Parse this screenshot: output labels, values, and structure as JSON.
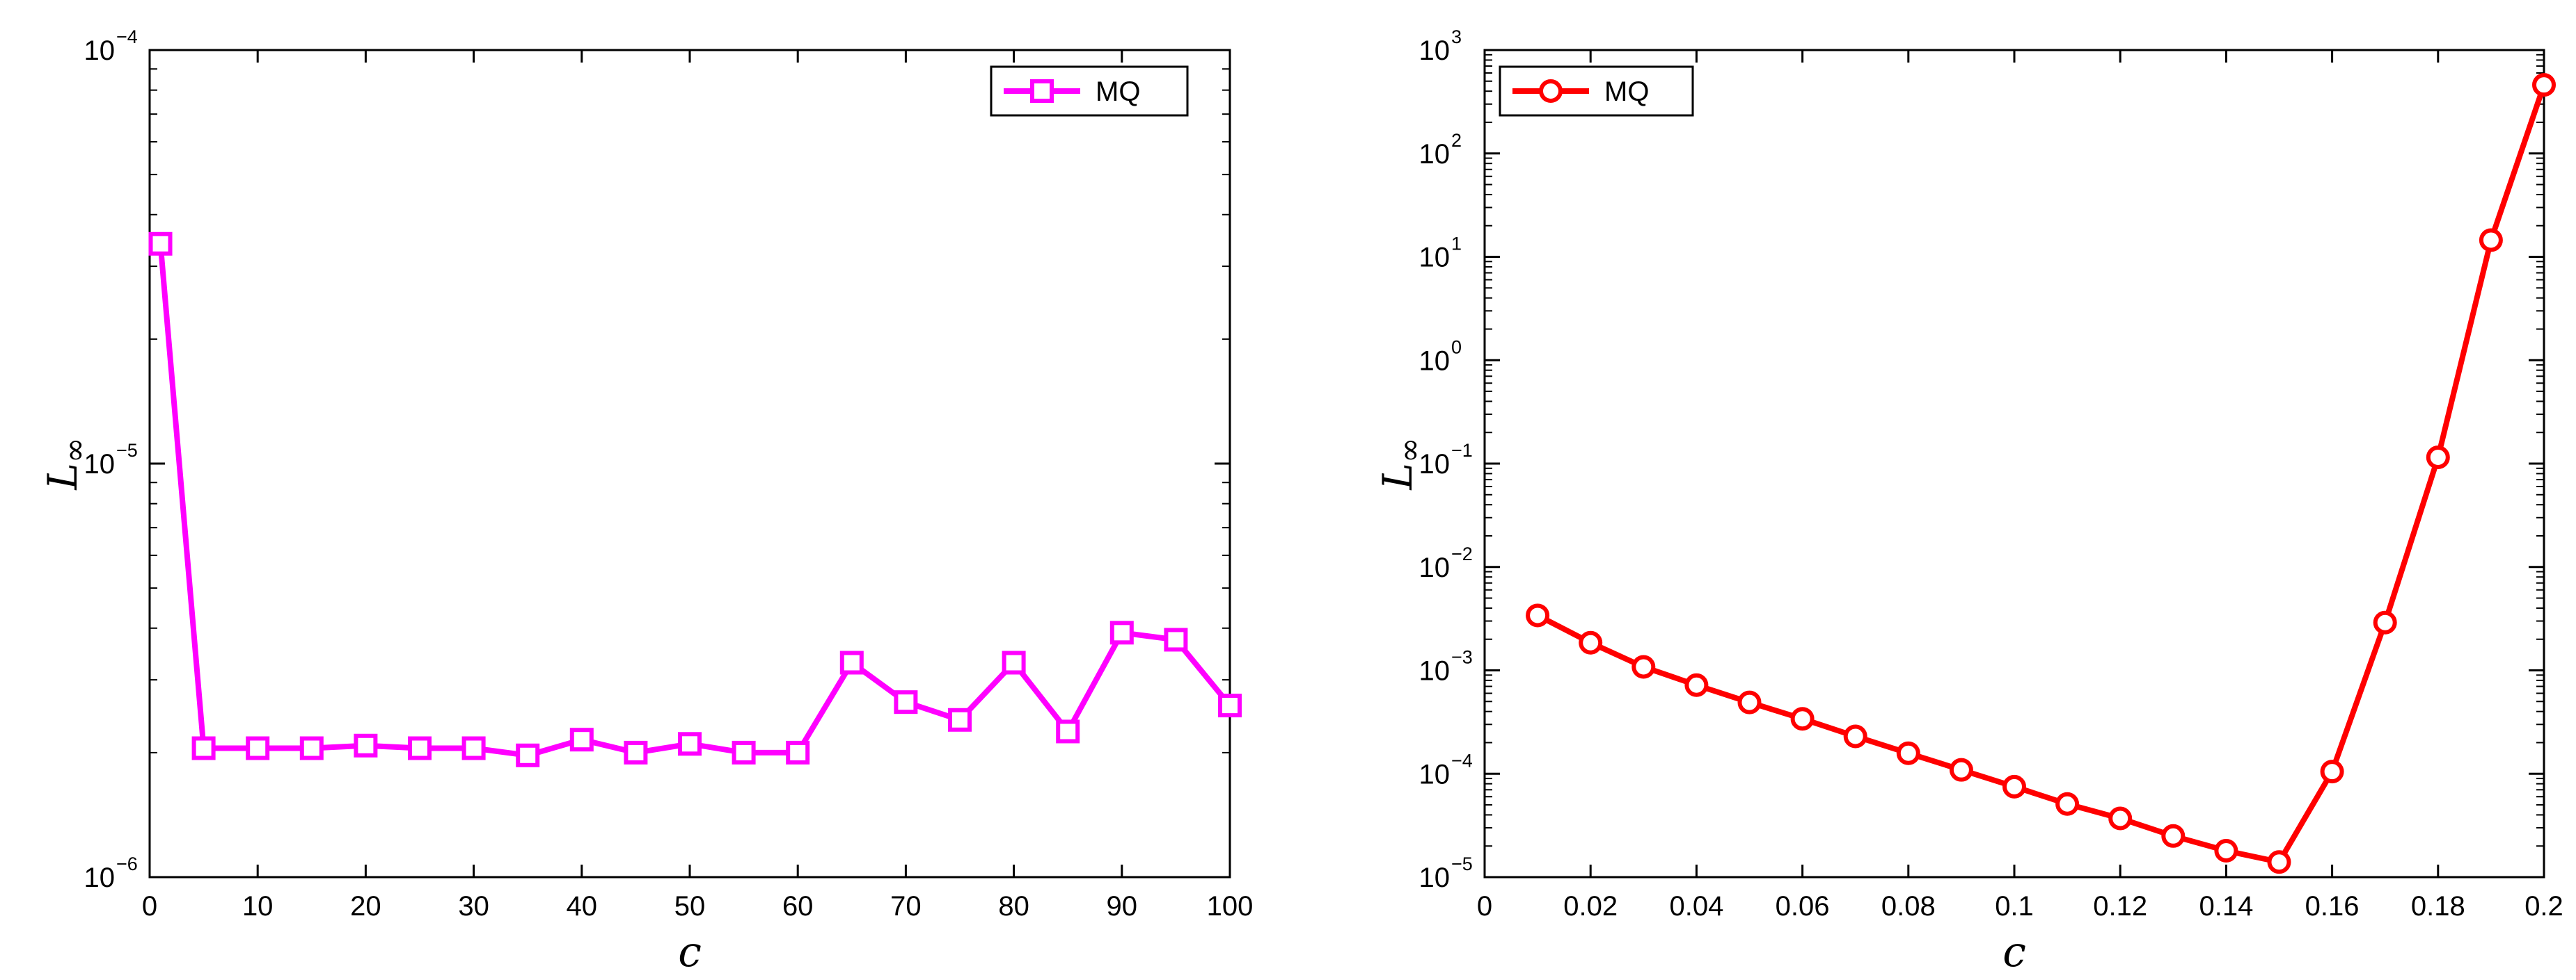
{
  "chart_data": [
    {
      "type": "line",
      "xlabel": "c",
      "ylabel": "L",
      "ylabel_subscript": "∞",
      "xlim": [
        0,
        100
      ],
      "ylim": [
        1e-06,
        0.0001
      ],
      "yscale": "log",
      "grid": false,
      "legend_position": "top-right",
      "x_ticks": [
        "0",
        "10",
        "20",
        "30",
        "40",
        "50",
        "60",
        "70",
        "80",
        "90",
        "100"
      ],
      "y_ticks": [
        {
          "base": "10",
          "exp": "−6"
        },
        {
          "base": "10",
          "exp": "−5"
        },
        {
          "base": "10",
          "exp": "−4"
        }
      ],
      "series": [
        {
          "name": "MQ",
          "color": "#ff00ff",
          "marker": "square",
          "x": [
            1,
            5,
            10,
            15,
            20,
            25,
            30,
            35,
            40,
            45,
            50,
            55,
            60,
            65,
            70,
            75,
            80,
            85,
            90,
            95,
            100
          ],
          "y": [
            3.4e-05,
            2.05e-06,
            2.05e-06,
            2.05e-06,
            2.08e-06,
            2.05e-06,
            2.05e-06,
            1.97e-06,
            2.15e-06,
            2e-06,
            2.1e-06,
            2e-06,
            2e-06,
            3.3e-06,
            2.65e-06,
            2.4e-06,
            3.3e-06,
            2.25e-06,
            3.9e-06,
            3.75e-06,
            2.6e-06
          ]
        }
      ]
    },
    {
      "type": "line",
      "xlabel": "c",
      "ylabel": "L",
      "ylabel_subscript": "∞",
      "xlim": [
        0,
        0.2
      ],
      "ylim": [
        1e-05,
        1000.0
      ],
      "yscale": "log",
      "grid": false,
      "legend_position": "top-left",
      "x_ticks": [
        "0",
        "0.02",
        "0.04",
        "0.06",
        "0.08",
        "0.1",
        "0.12",
        "0.14",
        "0.16",
        "0.18",
        "0.2"
      ],
      "y_ticks": [
        {
          "base": "10",
          "exp": "−5"
        },
        {
          "base": "10",
          "exp": "−4"
        },
        {
          "base": "10",
          "exp": "−3"
        },
        {
          "base": "10",
          "exp": "−2"
        },
        {
          "base": "10",
          "exp": "−1"
        },
        {
          "base": "10",
          "exp": "0"
        },
        {
          "base": "10",
          "exp": "1"
        },
        {
          "base": "10",
          "exp": "2"
        },
        {
          "base": "10",
          "exp": "3"
        }
      ],
      "series": [
        {
          "name": "MQ",
          "color": "#ff0000",
          "marker": "circle",
          "x": [
            0.01,
            0.02,
            0.03,
            0.04,
            0.05,
            0.06,
            0.07,
            0.08,
            0.09,
            0.1,
            0.11,
            0.12,
            0.13,
            0.14,
            0.15,
            0.16,
            0.17,
            0.18,
            0.19,
            0.2
          ],
          "y": [
            0.0034,
            0.00185,
            0.00108,
            0.00072,
            0.00049,
            0.00034,
            0.00023,
            0.000158,
            0.000109,
            7.5e-05,
            5.1e-05,
            3.7e-05,
            2.5e-05,
            1.8e-05,
            1.4e-05,
            0.000105,
            0.0029,
            0.115,
            14.5,
            460
          ]
        }
      ]
    }
  ]
}
